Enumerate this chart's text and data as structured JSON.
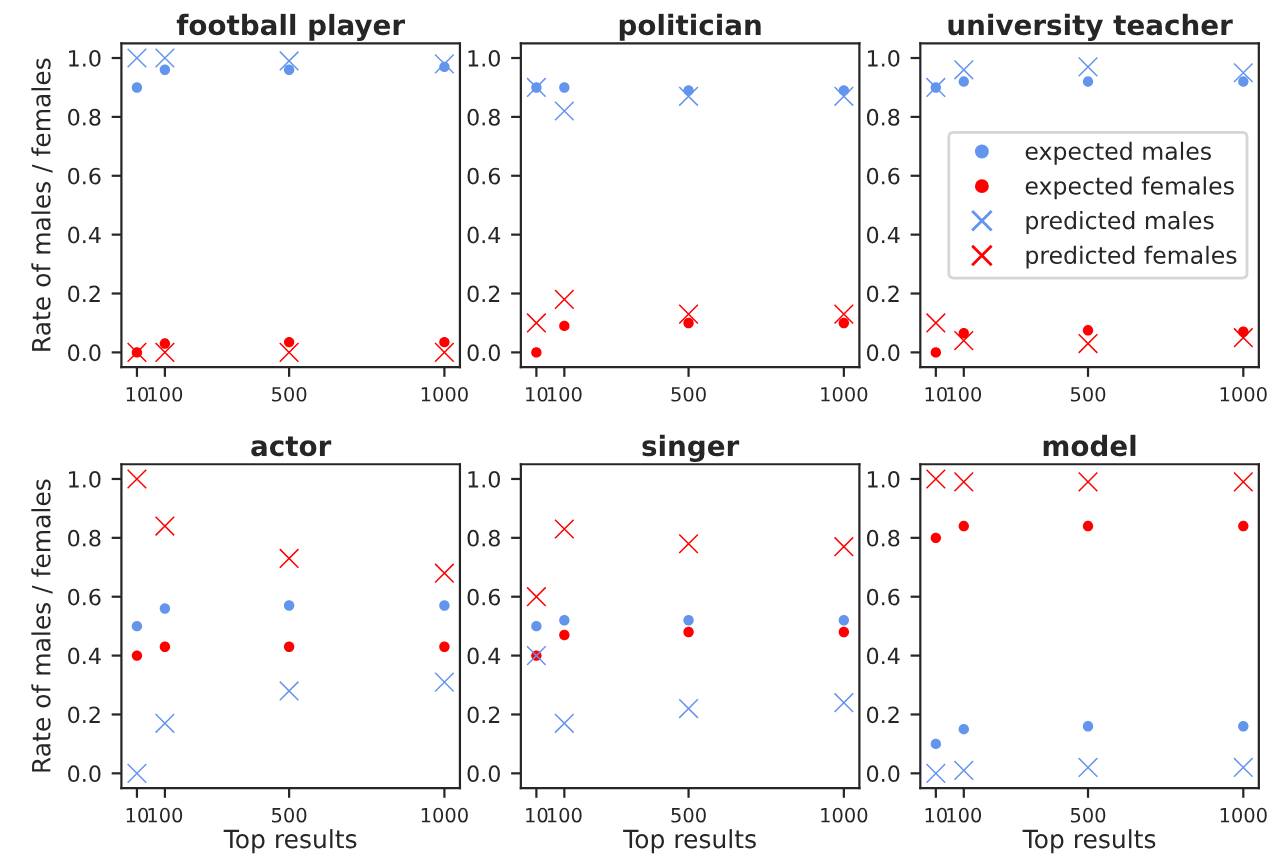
{
  "chart_data": [
    {
      "type": "scatter",
      "title": "football player",
      "ylabel": "Rate of males / females",
      "x": [
        10,
        100,
        500,
        1000
      ],
      "xlim": [
        -40,
        1050
      ],
      "xticks": [
        10,
        100,
        500,
        1000
      ],
      "ylim": [
        -0.05,
        1.05
      ],
      "yticks": [
        {
          "value": 0,
          "label": "0.0"
        },
        {
          "value": 0.2,
          "label": "0.2"
        },
        {
          "value": 0.4,
          "label": "0.4"
        },
        {
          "value": 0.6,
          "label": "0.6"
        },
        {
          "value": 0.8,
          "label": "0.8"
        },
        {
          "value": 1,
          "label": "1.0"
        }
      ],
      "grid": false,
      "legend": false,
      "series": [
        {
          "color": "#6495ed",
          "marker": "circle",
          "values": [
            0.9,
            0.96,
            0.96,
            0.97
          ]
        },
        {
          "color": "#ff0000",
          "marker": "circle",
          "values": [
            0,
            0.03,
            0.035,
            0.035
          ]
        },
        {
          "color": "#6495ed",
          "marker": "cross",
          "values": [
            1,
            1,
            0.99,
            0.98
          ]
        },
        {
          "color": "#ff0000",
          "marker": "cross",
          "values": [
            0,
            0,
            0,
            0
          ]
        }
      ]
    },
    {
      "type": "scatter",
      "title": "politician",
      "x": [
        10,
        100,
        500,
        1000
      ],
      "xlim": [
        -40,
        1050
      ],
      "xticks": [
        10,
        100,
        500,
        1000
      ],
      "ylim": [
        -0.05,
        1.05
      ],
      "yticks": [
        {
          "value": 0,
          "label": "0.0"
        },
        {
          "value": 0.2,
          "label": "0.2"
        },
        {
          "value": 0.4,
          "label": "0.4"
        },
        {
          "value": 0.6,
          "label": "0.6"
        },
        {
          "value": 0.8,
          "label": "0.8"
        },
        {
          "value": 1,
          "label": "1.0"
        }
      ],
      "grid": false,
      "legend": false,
      "series": [
        {
          "color": "#6495ed",
          "marker": "circle",
          "values": [
            0.9,
            0.9,
            0.89,
            0.89
          ]
        },
        {
          "color": "#ff0000",
          "marker": "circle",
          "values": [
            0,
            0.09,
            0.1,
            0.1
          ]
        },
        {
          "color": "#6495ed",
          "marker": "cross",
          "values": [
            0.9,
            0.82,
            0.87,
            0.87
          ]
        },
        {
          "color": "#ff0000",
          "marker": "cross",
          "values": [
            0.1,
            0.18,
            0.13,
            0.13
          ]
        }
      ]
    },
    {
      "type": "scatter",
      "title": "university teacher",
      "x": [
        10,
        100,
        500,
        1000
      ],
      "xlim": [
        -40,
        1050
      ],
      "xticks": [
        10,
        100,
        500,
        1000
      ],
      "ylim": [
        -0.05,
        1.05
      ],
      "yticks": [
        {
          "value": 0,
          "label": "0.0"
        },
        {
          "value": 0.2,
          "label": "0.2"
        },
        {
          "value": 0.4,
          "label": "0.4"
        },
        {
          "value": 0.6,
          "label": "0.6"
        },
        {
          "value": 0.8,
          "label": "0.8"
        },
        {
          "value": 1,
          "label": "1.0"
        }
      ],
      "grid": false,
      "legend": "right",
      "series": [
        {
          "name": "expected males",
          "color": "#6495ed",
          "marker": "circle",
          "values": [
            0.9,
            0.92,
            0.92,
            0.92
          ]
        },
        {
          "name": "expected females",
          "color": "#ff0000",
          "marker": "circle",
          "values": [
            0,
            0.065,
            0.075,
            0.07
          ]
        },
        {
          "name": "predicted males",
          "color": "#6495ed",
          "marker": "cross",
          "values": [
            0.9,
            0.96,
            0.97,
            0.95
          ]
        },
        {
          "name": "predicted females",
          "color": "#ff0000",
          "marker": "cross",
          "values": [
            0.1,
            0.04,
            0.03,
            0.05
          ]
        }
      ]
    },
    {
      "type": "scatter",
      "title": "actor",
      "xlabel": "Top results",
      "ylabel": "Rate of males / females",
      "x": [
        10,
        100,
        500,
        1000
      ],
      "xlim": [
        -40,
        1050
      ],
      "xticks": [
        10,
        100,
        500,
        1000
      ],
      "ylim": [
        -0.05,
        1.05
      ],
      "yticks": [
        {
          "value": 0,
          "label": "0.0"
        },
        {
          "value": 0.2,
          "label": "0.2"
        },
        {
          "value": 0.4,
          "label": "0.4"
        },
        {
          "value": 0.6,
          "label": "0.6"
        },
        {
          "value": 0.8,
          "label": "0.8"
        },
        {
          "value": 1,
          "label": "1.0"
        }
      ],
      "grid": false,
      "legend": false,
      "series": [
        {
          "color": "#6495ed",
          "marker": "circle",
          "values": [
            0.5,
            0.56,
            0.57,
            0.57
          ]
        },
        {
          "color": "#ff0000",
          "marker": "circle",
          "values": [
            0.4,
            0.43,
            0.43,
            0.43
          ]
        },
        {
          "color": "#6495ed",
          "marker": "cross",
          "values": [
            0,
            0.17,
            0.28,
            0.31
          ]
        },
        {
          "color": "#ff0000",
          "marker": "cross",
          "values": [
            1,
            0.84,
            0.73,
            0.68
          ]
        }
      ]
    },
    {
      "type": "scatter",
      "title": "singer",
      "xlabel": "Top results",
      "x": [
        10,
        100,
        500,
        1000
      ],
      "xlim": [
        -40,
        1050
      ],
      "xticks": [
        10,
        100,
        500,
        1000
      ],
      "ylim": [
        -0.05,
        1.05
      ],
      "yticks": [
        {
          "value": 0,
          "label": "0.0"
        },
        {
          "value": 0.2,
          "label": "0.2"
        },
        {
          "value": 0.4,
          "label": "0.4"
        },
        {
          "value": 0.6,
          "label": "0.6"
        },
        {
          "value": 0.8,
          "label": "0.8"
        },
        {
          "value": 1,
          "label": "1.0"
        }
      ],
      "grid": false,
      "legend": false,
      "series": [
        {
          "color": "#6495ed",
          "marker": "circle",
          "values": [
            0.5,
            0.52,
            0.52,
            0.52
          ]
        },
        {
          "color": "#ff0000",
          "marker": "circle",
          "values": [
            0.4,
            0.47,
            0.48,
            0.48
          ]
        },
        {
          "color": "#6495ed",
          "marker": "cross",
          "values": [
            0.4,
            0.17,
            0.22,
            0.24
          ]
        },
        {
          "color": "#ff0000",
          "marker": "cross",
          "values": [
            0.6,
            0.83,
            0.78,
            0.77
          ]
        }
      ]
    },
    {
      "type": "scatter",
      "title": "model",
      "xlabel": "Top results",
      "x": [
        10,
        100,
        500,
        1000
      ],
      "xlim": [
        -40,
        1050
      ],
      "xticks": [
        10,
        100,
        500,
        1000
      ],
      "ylim": [
        -0.05,
        1.05
      ],
      "yticks": [
        {
          "value": 0,
          "label": "0.0"
        },
        {
          "value": 0.2,
          "label": "0.2"
        },
        {
          "value": 0.4,
          "label": "0.4"
        },
        {
          "value": 0.6,
          "label": "0.6"
        },
        {
          "value": 0.8,
          "label": "0.8"
        },
        {
          "value": 1,
          "label": "1.0"
        }
      ],
      "grid": false,
      "legend": false,
      "series": [
        {
          "color": "#6495ed",
          "marker": "circle",
          "values": [
            0.1,
            0.15,
            0.16,
            0.16
          ]
        },
        {
          "color": "#ff0000",
          "marker": "circle",
          "values": [
            0.8,
            0.84,
            0.84,
            0.84
          ]
        },
        {
          "color": "#6495ed",
          "marker": "cross",
          "values": [
            0,
            0.01,
            0.02,
            0.02
          ]
        },
        {
          "color": "#ff0000",
          "marker": "cross",
          "values": [
            1,
            0.99,
            0.99,
            0.99
          ]
        }
      ]
    }
  ]
}
